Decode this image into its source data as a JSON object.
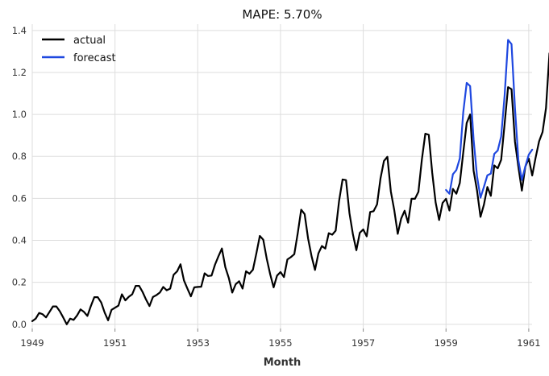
{
  "chart_data": {
    "type": "line",
    "title": "MAPE: 5.70%",
    "xlabel": "Month",
    "ylabel": "",
    "xlim": [
      1949,
      1961.08
    ],
    "ylim": [
      -0.02,
      1.43
    ],
    "x_ticks": [
      1949,
      1951,
      1953,
      1955,
      1957,
      1959,
      1961
    ],
    "x_tick_labels": [
      "1949",
      "1951",
      "1953",
      "1955",
      "1957",
      "1959",
      "1961"
    ],
    "y_ticks": [
      0.0,
      0.2,
      0.4,
      0.6,
      0.8,
      1.0,
      1.2,
      1.4
    ],
    "y_tick_labels": [
      "0.0",
      "0.2",
      "0.4",
      "0.6",
      "0.8",
      "1.0",
      "1.2",
      "1.4"
    ],
    "grid": true,
    "legend_position": "top-left",
    "series": [
      {
        "name": "actual",
        "color": "#000000",
        "x_start": "1949-01",
        "x_step": "month",
        "values": [
          0.015,
          0.027,
          0.054,
          0.048,
          0.033,
          0.059,
          0.085,
          0.085,
          0.062,
          0.032,
          0.0,
          0.027,
          0.021,
          0.042,
          0.071,
          0.059,
          0.04,
          0.087,
          0.129,
          0.129,
          0.104,
          0.056,
          0.019,
          0.069,
          0.079,
          0.089,
          0.143,
          0.114,
          0.131,
          0.143,
          0.183,
          0.183,
          0.154,
          0.118,
          0.087,
          0.13,
          0.139,
          0.151,
          0.178,
          0.162,
          0.17,
          0.236,
          0.252,
          0.286,
          0.209,
          0.17,
          0.133,
          0.176,
          0.178,
          0.179,
          0.243,
          0.23,
          0.232,
          0.284,
          0.324,
          0.361,
          0.272,
          0.221,
          0.151,
          0.191,
          0.205,
          0.17,
          0.253,
          0.241,
          0.26,
          0.338,
          0.421,
          0.403,
          0.313,
          0.239,
          0.176,
          0.232,
          0.249,
          0.225,
          0.309,
          0.32,
          0.334,
          0.434,
          0.546,
          0.525,
          0.409,
          0.325,
          0.259,
          0.338,
          0.373,
          0.361,
          0.434,
          0.427,
          0.446,
          0.589,
          0.69,
          0.687,
          0.529,
          0.429,
          0.353,
          0.436,
          0.452,
          0.419,
          0.535,
          0.539,
          0.571,
          0.695,
          0.778,
          0.798,
          0.633,
          0.543,
          0.431,
          0.504,
          0.541,
          0.484,
          0.598,
          0.598,
          0.631,
          0.785,
          0.908,
          0.903,
          0.722,
          0.58,
          0.497,
          0.578,
          0.598,
          0.542,
          0.645,
          0.622,
          0.673,
          0.818,
          0.959,
          1.0,
          0.732,
          0.637,
          0.512,
          0.57,
          0.654,
          0.612,
          0.757,
          0.743,
          0.784,
          0.955,
          1.13,
          1.12,
          0.87,
          0.749,
          0.637,
          0.751,
          0.79,
          0.709,
          0.795,
          0.872,
          0.916,
          1.03,
          1.291,
          1.254,
          1.01,
          0.877,
          0.727,
          0.822
        ]
      },
      {
        "name": "forecast",
        "color": "#1f48e0",
        "x_start": "1959-01",
        "x_step": "month",
        "values": [
          0.64,
          0.622,
          0.715,
          0.735,
          0.79,
          1.01,
          1.15,
          1.135,
          0.88,
          0.705,
          0.603,
          0.655,
          0.71,
          0.718,
          0.812,
          0.828,
          0.895,
          1.09,
          1.355,
          1.335,
          1.03,
          0.78,
          0.688,
          0.752,
          0.808,
          0.832
        ]
      }
    ]
  }
}
